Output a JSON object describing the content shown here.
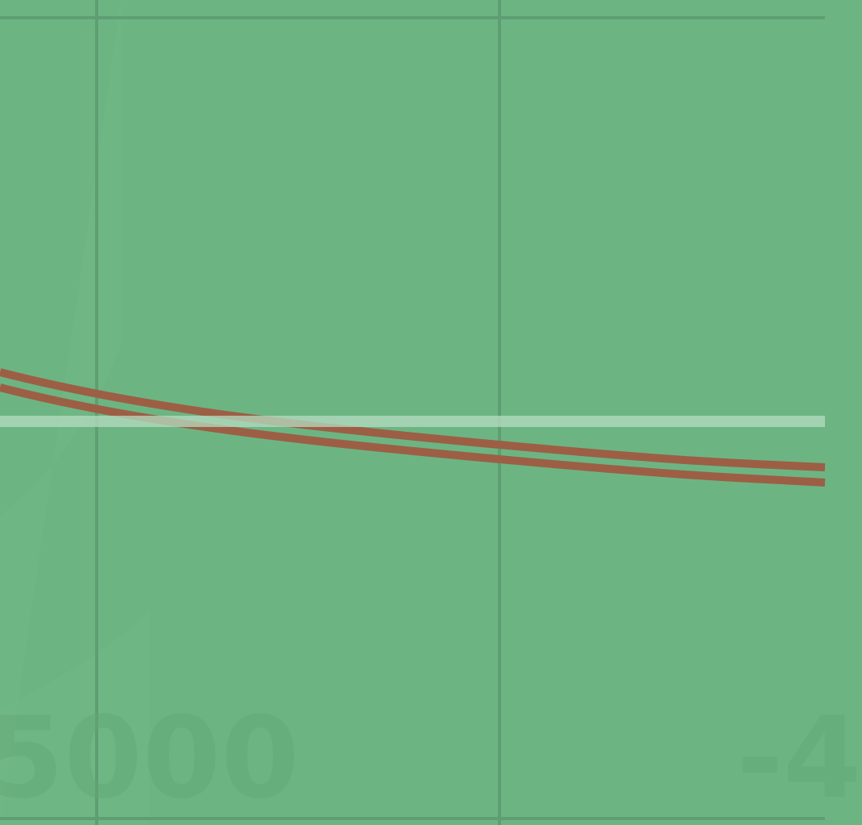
{
  "map": {
    "background_color": "#6cb583",
    "grid_color": "#5f9e72",
    "label_color": "#62a776",
    "road_color": "#9c5f45",
    "highlight_line_color": "#b6dcc1",
    "contour_labels": [
      "5000",
      "-4"
    ]
  }
}
